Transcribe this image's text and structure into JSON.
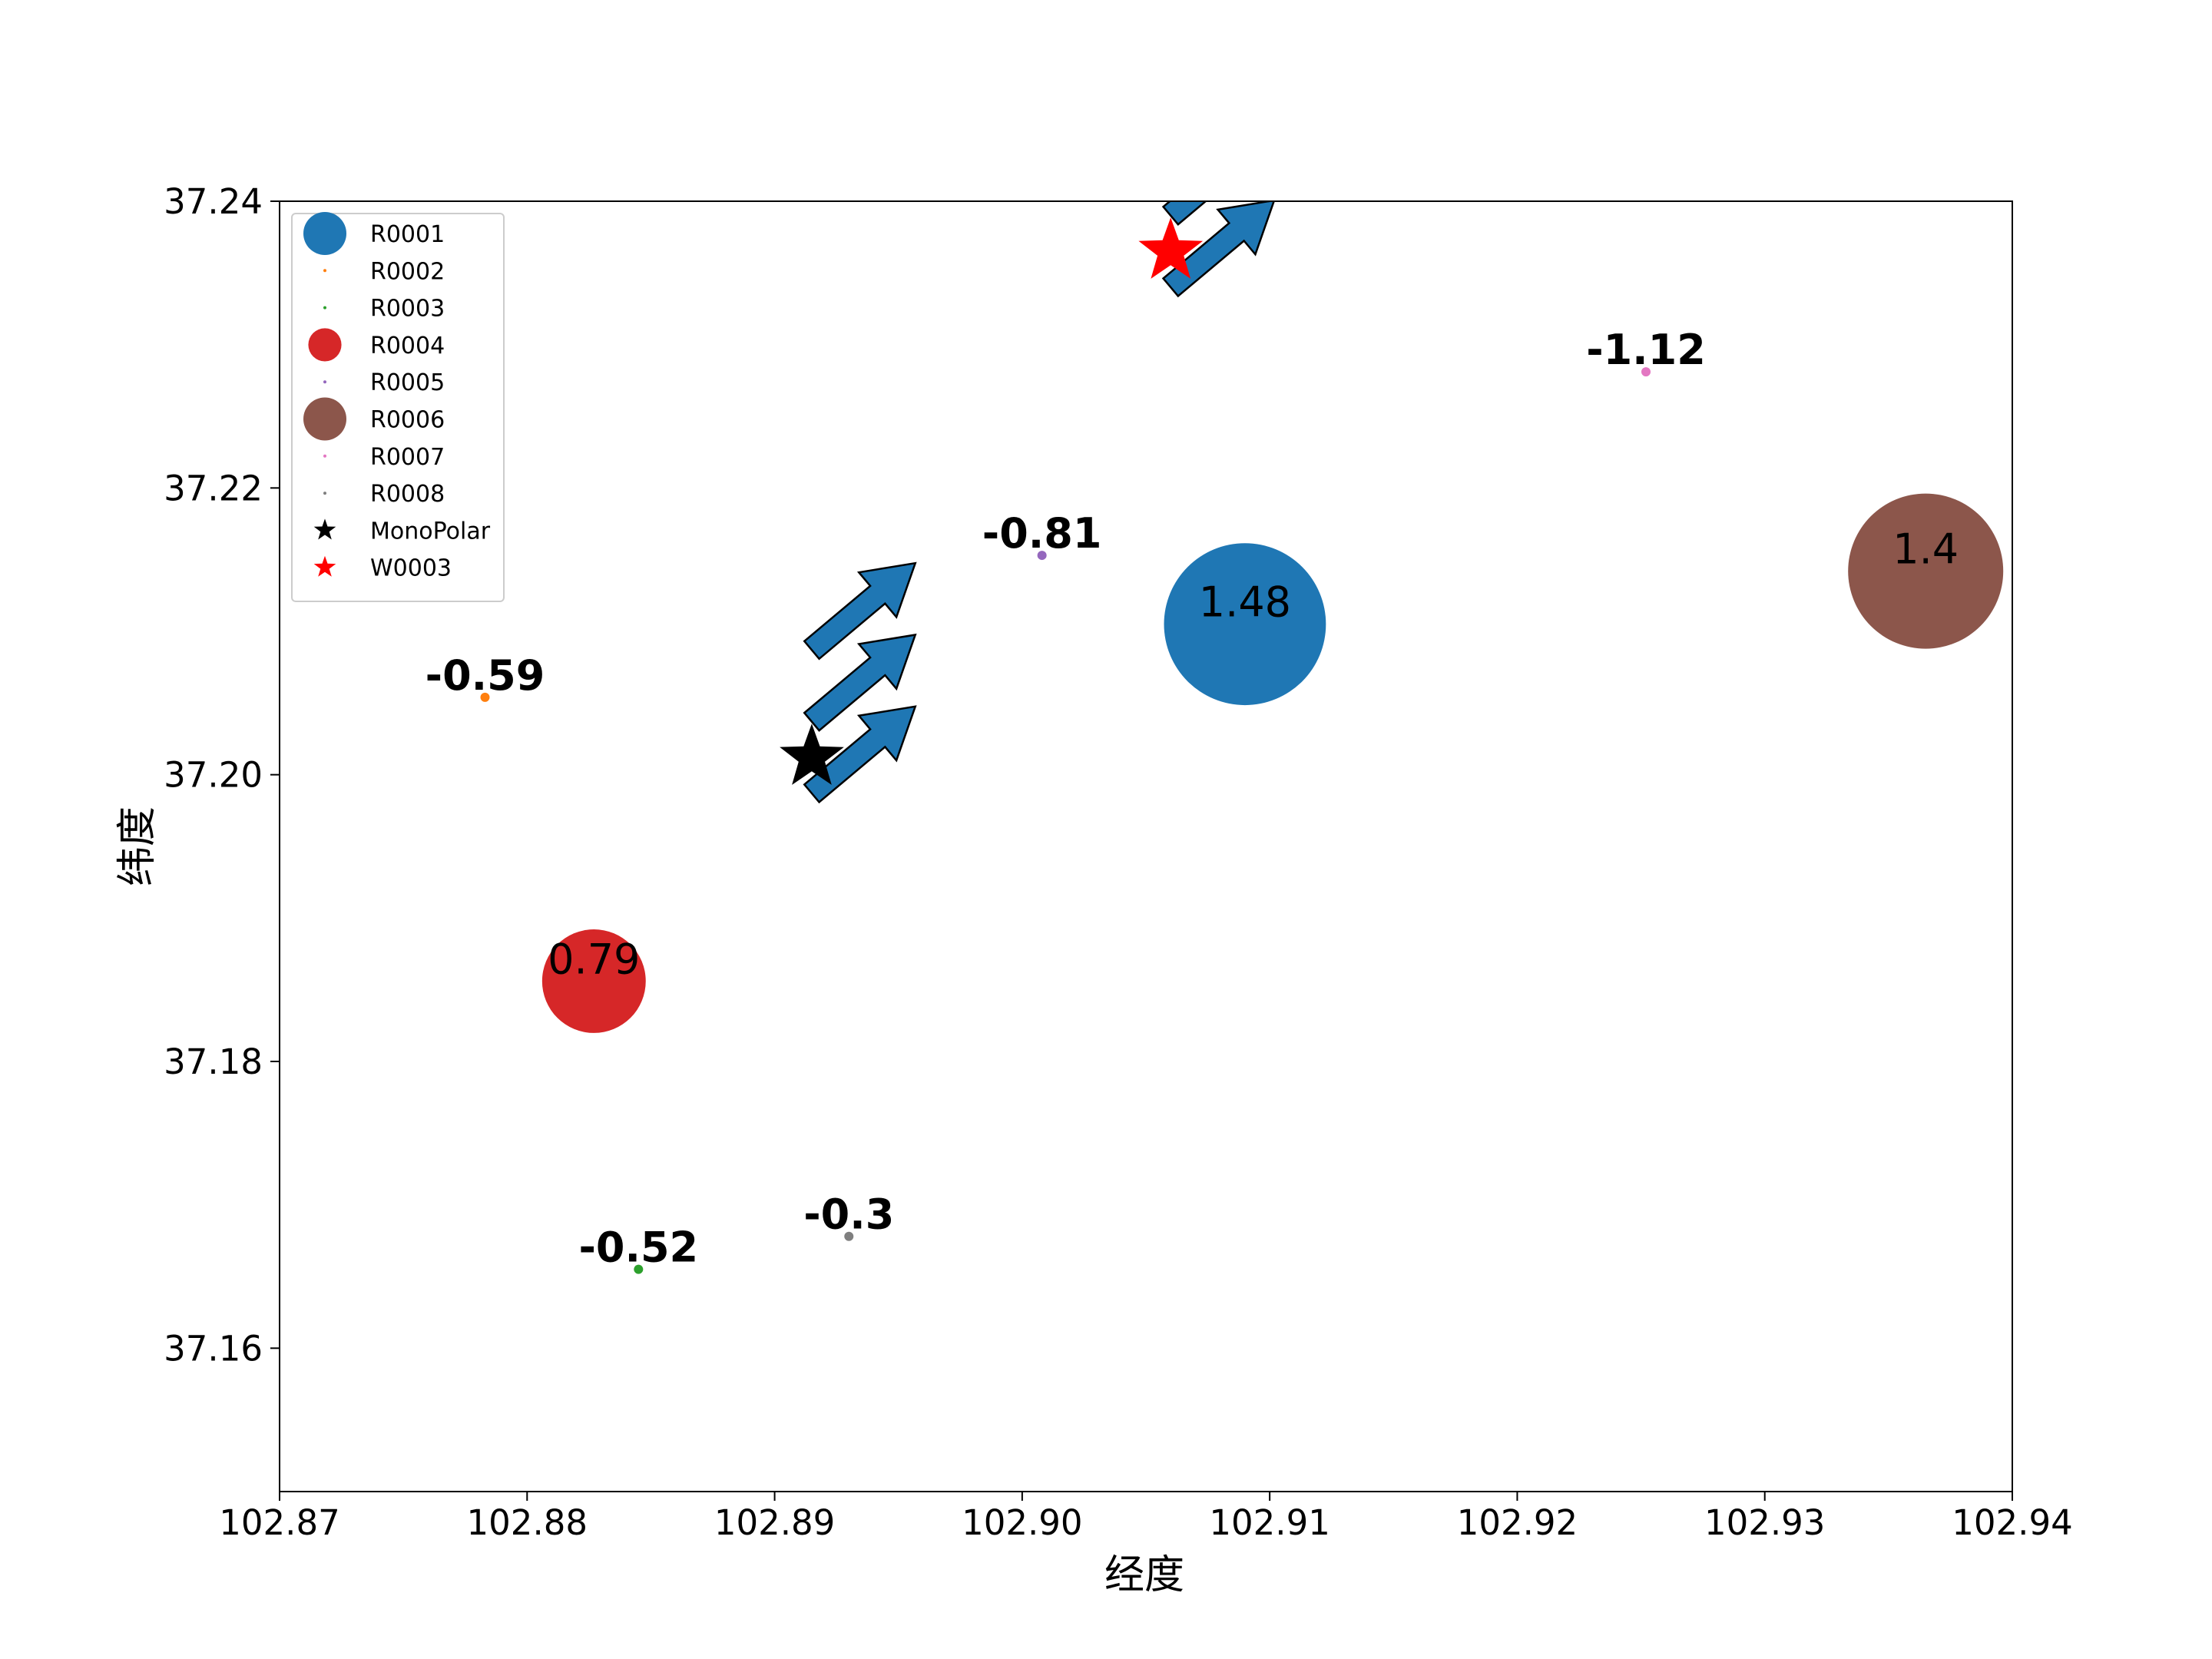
{
  "chart_data": {
    "type": "scatter",
    "title": "",
    "xlabel": "经度",
    "ylabel": "纬度",
    "xlim": [
      102.87,
      102.94
    ],
    "ylim": [
      37.15,
      37.24
    ],
    "xticks": [
      "102.87",
      "102.88",
      "102.89",
      "102.90",
      "102.91",
      "102.92",
      "102.93",
      "102.94"
    ],
    "yticks": [
      "37.16",
      "37.18",
      "37.20",
      "37.22",
      "37.24"
    ],
    "grid": false,
    "legend_position": "top-left",
    "series": [
      {
        "name": "R0001",
        "x": 102.909,
        "y": 37.2105,
        "value": 1.48,
        "value_label": "1.48",
        "color": "#1f77b4"
      },
      {
        "name": "R0002",
        "x": 102.8783,
        "y": 37.2054,
        "value": -0.59,
        "value_label": "-0.59",
        "color": "#ff7f0e"
      },
      {
        "name": "R0003",
        "x": 102.8845,
        "y": 37.1655,
        "value": -0.52,
        "value_label": "-0.52",
        "color": "#2ca02c"
      },
      {
        "name": "R0004",
        "x": 102.8827,
        "y": 37.1856,
        "value": 0.79,
        "value_label": "0.79",
        "color": "#d62728"
      },
      {
        "name": "R0005",
        "x": 102.9008,
        "y": 37.2153,
        "value": -0.81,
        "value_label": "-0.81",
        "color": "#9467bd"
      },
      {
        "name": "R0006",
        "x": 102.9365,
        "y": 37.2142,
        "value": 1.4,
        "value_label": "1.4",
        "color": "#8c564b"
      },
      {
        "name": "R0007",
        "x": 102.9252,
        "y": 37.2281,
        "value": -1.12,
        "value_label": "-1.12",
        "color": "#e377c2"
      },
      {
        "name": "R0008",
        "x": 102.893,
        "y": 37.1678,
        "value": -0.3,
        "value_label": "-0.3",
        "color": "#7f7f7f"
      }
    ],
    "markers": [
      {
        "name": "MonoPolar",
        "x": 102.8915,
        "y": 37.2012,
        "color": "#000000",
        "shape": "star"
      },
      {
        "name": "W0003",
        "x": 102.906,
        "y": 37.2365,
        "color": "#ff0000",
        "shape": "star"
      }
    ],
    "arrows": [
      {
        "x": 102.8915,
        "y": 37.1987,
        "color": "#1f77b4"
      },
      {
        "x": 102.8915,
        "y": 37.2037,
        "color": "#1f77b4"
      },
      {
        "x": 102.8915,
        "y": 37.2087,
        "color": "#1f77b4"
      },
      {
        "x": 102.906,
        "y": 37.234,
        "color": "#1f77b4"
      },
      {
        "x": 102.906,
        "y": 37.239,
        "color": "#1f77b4"
      }
    ]
  }
}
